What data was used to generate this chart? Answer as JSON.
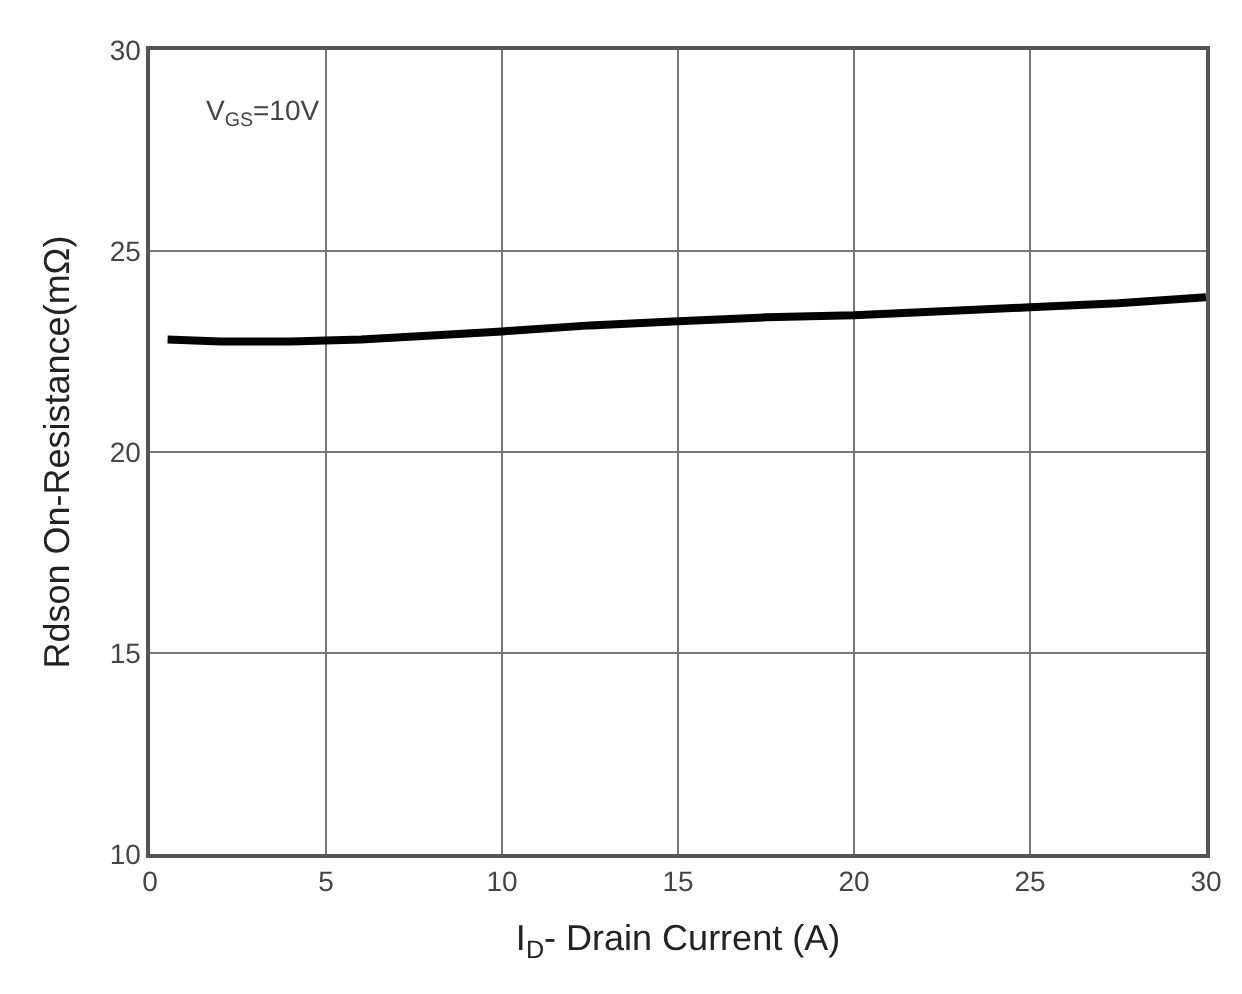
{
  "chart_data": {
    "type": "line",
    "xlabel": "I$_{D}$- Drain Current (A)",
    "ylabel": "Rdson On-Resistance(mΩ)",
    "annotations": [
      "V$_{GS}$=10V"
    ],
    "series": [
      {
        "color": "#000000",
        "x": [
          0.5,
          2,
          4,
          6,
          8,
          10,
          12.5,
          15,
          17.5,
          20,
          22.5,
          25,
          27.5,
          30
        ],
        "values": [
          22.8,
          22.75,
          22.75,
          22.8,
          22.9,
          23.0,
          23.15,
          23.25,
          23.35,
          23.4,
          23.5,
          23.6,
          23.7,
          23.85
        ]
      }
    ],
    "xlim": [
      0,
      30
    ],
    "xticks": [
      0,
      5,
      10,
      15,
      20,
      25,
      30
    ],
    "ylim": [
      10,
      30
    ],
    "yticks": [
      10,
      15,
      20,
      25,
      30
    ],
    "grid": true,
    "marker": "none",
    "line_style": "solid"
  }
}
